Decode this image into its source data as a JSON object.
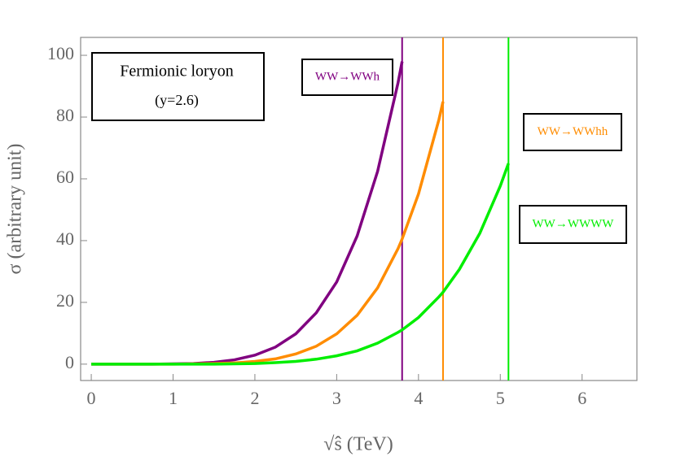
{
  "chart_data": {
    "type": "line",
    "title": "Fermionic loryon",
    "subtitle": "(y=2.6)",
    "x_label": "√ŝ (TeV)",
    "y_label": "σ (arbitrary unit)",
    "x": [
      0,
      0.25,
      0.5,
      0.75,
      1,
      1.25,
      1.5,
      1.75,
      2,
      2.25,
      2.5,
      2.75,
      3,
      3.25,
      3.5,
      3.75,
      3.8,
      4,
      4.25,
      4.3,
      4.5,
      4.75,
      5,
      5.1
    ],
    "series": [
      {
        "name": "WW→WWh",
        "color": "#800080",
        "cutoff": 3.8,
        "values": [
          0,
          0,
          0,
          0,
          0.1,
          0.2,
          0.6,
          1.4,
          2.9,
          5.5,
          9.8,
          16.6,
          26.6,
          41.5,
          62.4,
          91.1,
          98,
          null,
          null,
          null,
          null,
          null,
          null,
          null
        ]
      },
      {
        "name": "WW→WWhh",
        "color": "#ff8c00",
        "cutoff": 4.3,
        "values": [
          0,
          0,
          0,
          0,
          0,
          0.1,
          0.2,
          0.4,
          0.9,
          1.7,
          3.3,
          5.8,
          9.8,
          15.8,
          24.7,
          37.4,
          40.5,
          55.1,
          79.2,
          85,
          null,
          null,
          null,
          null
        ]
      },
      {
        "name": "WW→WWWW",
        "color": "#00ee00",
        "cutoff": 5.1,
        "values": [
          0,
          0,
          0,
          0,
          0,
          0,
          0,
          0.1,
          0.2,
          0.5,
          0.9,
          1.6,
          2.7,
          4.3,
          6.8,
          10.3,
          11.1,
          15.1,
          21.8,
          23.3,
          30.7,
          42.4,
          57.7,
          65
        ]
      }
    ],
    "xlim": [
      -0.13,
      6.67
    ],
    "ylim": [
      -5.3,
      105.8
    ],
    "xticks": [
      0,
      1,
      2,
      3,
      4,
      5,
      6
    ],
    "yticks": [
      0,
      20,
      40,
      60,
      80,
      100
    ],
    "grid": false
  }
}
